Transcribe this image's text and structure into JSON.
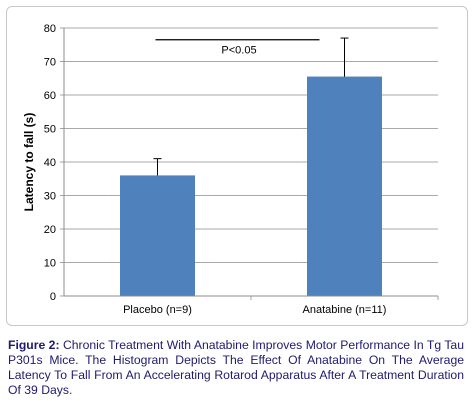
{
  "chart_data": {
    "type": "bar",
    "categories": [
      "Placebo (n=9)",
      "Anatabine (n=11)"
    ],
    "values": [
      36,
      65.5
    ],
    "error": [
      5,
      11.5
    ],
    "title": "",
    "xlabel": "",
    "ylabel": "Latency to fall (s)",
    "ylim": [
      0,
      80
    ],
    "yticks": [
      0,
      10,
      20,
      30,
      40,
      50,
      60,
      70,
      80
    ],
    "grid": true,
    "bar_color": "#4f81bd",
    "annotation": {
      "text": "P<0.05",
      "y": 76.5
    }
  },
  "caption": {
    "label": "Figure 2:",
    "text": "Chronic Treatment With Anatabine Improves Motor Performance In Tg Tau P301s Mice. The Histogram Depicts The Effect Of Anatabine On The Average Latency To Fall From An Accelerating Rotarod Apparatus After A Treatment Duration Of 39 Days."
  }
}
